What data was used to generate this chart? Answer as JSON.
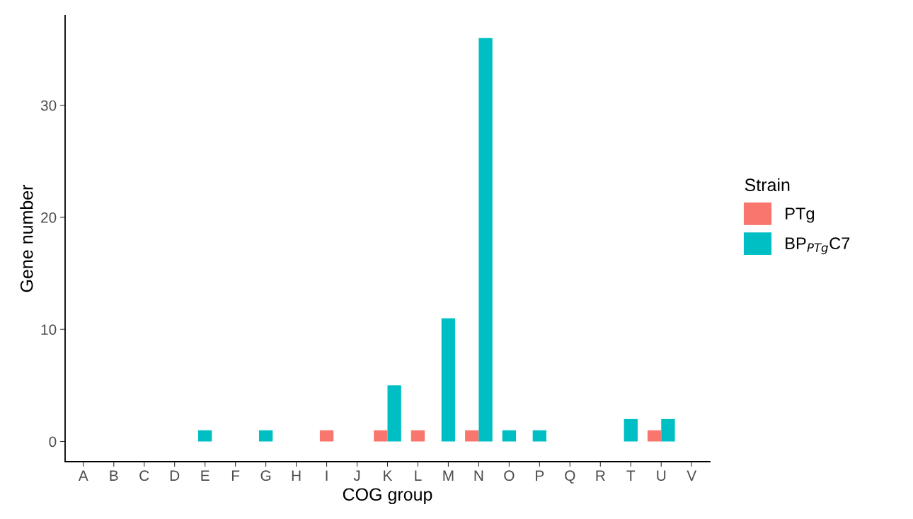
{
  "chart_data": {
    "type": "bar",
    "xlabel": "COG group",
    "ylabel": "Gene number",
    "legend_title": "Strain",
    "legend": "right",
    "grid": false,
    "categories": [
      "A",
      "B",
      "C",
      "D",
      "E",
      "F",
      "G",
      "H",
      "I",
      "J",
      "K",
      "L",
      "M",
      "N",
      "O",
      "P",
      "Q",
      "R",
      "T",
      "U",
      "V"
    ],
    "series": [
      {
        "name": "PTg",
        "color": "#f8766d",
        "values": [
          null,
          null,
          null,
          null,
          null,
          null,
          null,
          null,
          1,
          null,
          1,
          1,
          null,
          1,
          null,
          null,
          null,
          null,
          null,
          1,
          null
        ]
      },
      {
        "name": "BP$_{PTg}$C7",
        "color": "#00bfc4",
        "values": [
          null,
          null,
          null,
          null,
          1,
          null,
          1,
          null,
          null,
          null,
          5,
          null,
          11,
          36,
          1,
          1,
          null,
          null,
          2,
          2,
          null
        ]
      }
    ],
    "ylim": [
      -1.8,
      38
    ],
    "yticks": [
      0,
      10,
      20,
      30
    ]
  }
}
